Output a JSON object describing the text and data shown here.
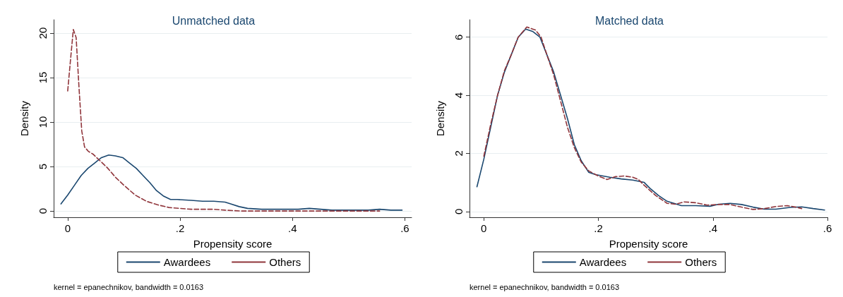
{
  "chart_data": [
    {
      "type": "line",
      "title": "Unmatched data",
      "xlabel": "Propensity score",
      "ylabel": "Density",
      "xlim": [
        -0.025,
        0.612
      ],
      "ylim": [
        -0.7,
        21.5
      ],
      "xticks": [
        0,
        {
          "value": 0.2,
          "label": ".2"
        },
        {
          "value": 0.4,
          "label": ".4"
        },
        {
          "value": 0.6,
          "label": ".6"
        }
      ],
      "yticks": [
        0,
        5,
        10,
        15,
        20
      ],
      "grid": "y",
      "legend": "bottom",
      "marker": "none",
      "annotations": [
        "kernel = epanechnikov, bandwidth = 0.0163"
      ],
      "series": [
        {
          "name": "Awardees",
          "color": "#1a476f",
          "line_style": "solid",
          "x": [
            -0.012,
            0,
            0.012,
            0.024,
            0.036,
            0.048,
            0.06,
            0.073,
            0.085,
            0.098,
            0.11,
            0.122,
            0.134,
            0.146,
            0.158,
            0.17,
            0.183,
            0.195,
            0.22,
            0.24,
            0.26,
            0.28,
            0.29,
            0.305,
            0.32,
            0.345,
            0.37,
            0.395,
            0.41,
            0.43,
            0.45,
            0.47,
            0.49,
            0.51,
            0.535,
            0.555,
            0.575,
            0.595
          ],
          "values": [
            0.8,
            1.8,
            2.9,
            4.0,
            4.8,
            5.4,
            6.0,
            6.3,
            6.2,
            6.0,
            5.4,
            4.8,
            4.0,
            3.2,
            2.3,
            1.7,
            1.3,
            1.3,
            1.2,
            1.1,
            1.1,
            1.0,
            0.8,
            0.5,
            0.3,
            0.2,
            0.2,
            0.2,
            0.2,
            0.3,
            0.2,
            0.1,
            0.1,
            0.1,
            0.1,
            0.2,
            0.1,
            0.1
          ]
        },
        {
          "name": "Others",
          "color": "#90353b",
          "line_style": "dashed",
          "x": [
            0,
            0.005,
            0.01,
            0.015,
            0.02,
            0.025,
            0.03,
            0.037,
            0.045,
            0.055,
            0.07,
            0.085,
            0.1,
            0.12,
            0.14,
            0.16,
            0.18,
            0.2,
            0.22,
            0.26,
            0.28,
            0.31,
            0.35,
            0.4,
            0.45,
            0.5,
            0.555
          ],
          "values": [
            13.5,
            17,
            20.4,
            19.5,
            14,
            9,
            7.2,
            6.7,
            6.4,
            5.8,
            4.9,
            3.8,
            2.9,
            1.8,
            1.1,
            0.7,
            0.4,
            0.3,
            0.2,
            0.2,
            0.1,
            0.0,
            0.0,
            0.0,
            0.0,
            0.0,
            0.0
          ]
        }
      ]
    },
    {
      "type": "line",
      "title": "Matched data",
      "xlabel": "Propensity score",
      "ylabel": "Density",
      "xlim": [
        -0.025,
        0.6
      ],
      "ylim": [
        -0.2,
        6.6
      ],
      "xticks": [
        0,
        {
          "value": 0.2,
          "label": ".2"
        },
        {
          "value": 0.4,
          "label": ".4"
        },
        {
          "value": 0.6,
          "label": ".6"
        }
      ],
      "yticks": [
        0,
        2,
        4,
        6
      ],
      "grid": "y",
      "legend": "bottom",
      "marker": "none",
      "annotations": [
        "kernel = epanechnikov, bandwidth = 0.0163"
      ],
      "series": [
        {
          "name": "Awardees",
          "color": "#1a476f",
          "line_style": "solid",
          "x": [
            -0.012,
            0,
            0.012,
            0.024,
            0.036,
            0.048,
            0.06,
            0.073,
            0.085,
            0.098,
            0.11,
            0.122,
            0.134,
            0.146,
            0.158,
            0.17,
            0.183,
            0.195,
            0.22,
            0.24,
            0.26,
            0.28,
            0.29,
            0.305,
            0.32,
            0.345,
            0.37,
            0.395,
            0.41,
            0.43,
            0.45,
            0.47,
            0.49,
            0.51,
            0.535,
            0.555,
            0.575,
            0.595
          ],
          "values": [
            0.85,
            1.8,
            2.9,
            4.0,
            4.8,
            5.4,
            6.0,
            6.28,
            6.2,
            6.0,
            5.4,
            4.8,
            4.0,
            3.2,
            2.3,
            1.75,
            1.35,
            1.27,
            1.18,
            1.12,
            1.08,
            1.0,
            0.8,
            0.55,
            0.35,
            0.2,
            0.2,
            0.18,
            0.25,
            0.28,
            0.24,
            0.15,
            0.08,
            0.08,
            0.14,
            0.16,
            0.1,
            0.05
          ]
        },
        {
          "name": "Others",
          "color": "#90353b",
          "line_style": "dashed",
          "x": [
            0,
            0.012,
            0.024,
            0.036,
            0.048,
            0.06,
            0.075,
            0.09,
            0.1,
            0.11,
            0.122,
            0.134,
            0.146,
            0.158,
            0.17,
            0.183,
            0.2,
            0.215,
            0.23,
            0.245,
            0.26,
            0.27,
            0.28,
            0.3,
            0.32,
            0.335,
            0.35,
            0.37,
            0.39,
            0.41,
            0.43,
            0.45,
            0.47,
            0.49,
            0.51,
            0.53,
            0.545,
            0.555
          ],
          "values": [
            1.9,
            3.0,
            4.0,
            4.85,
            5.4,
            6.0,
            6.35,
            6.25,
            6.0,
            5.4,
            4.7,
            3.8,
            2.9,
            2.2,
            1.7,
            1.4,
            1.22,
            1.1,
            1.2,
            1.22,
            1.18,
            1.1,
            0.9,
            0.55,
            0.28,
            0.25,
            0.33,
            0.3,
            0.22,
            0.24,
            0.24,
            0.15,
            0.07,
            0.1,
            0.17,
            0.2,
            0.15,
            0.1
          ]
        }
      ]
    }
  ]
}
